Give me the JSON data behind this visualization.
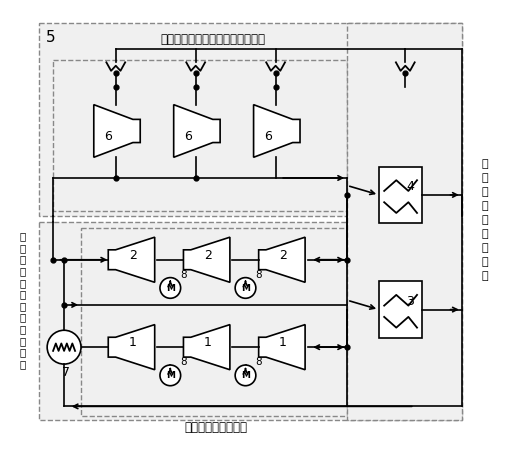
{
  "fig_width": 5.25,
  "fig_height": 4.49,
  "dpi": 100,
  "bg_color": "#ffffff",
  "title_top": "多级再热膨胀近热源温度等温吸热",
  "label_right": "多\n级\n分\n流\n近\n极\n限\n回\n热",
  "label_bottom": "多级间冷近等温压缩",
  "label_left_vert": "临\n界\n点\n近\n环\n境\n温\n度\n等\n温\n放\n热",
  "label_5": "5",
  "label_7": "7",
  "label_4": "4",
  "label_3": "3",
  "turb_label": "6",
  "comp2_label": "2",
  "comp1_label": "1",
  "motor_label": "8",
  "lc": "#000000",
  "dc": "#888888",
  "fill_dash": "#f0f0f0",
  "fill_white": "#ffffff"
}
